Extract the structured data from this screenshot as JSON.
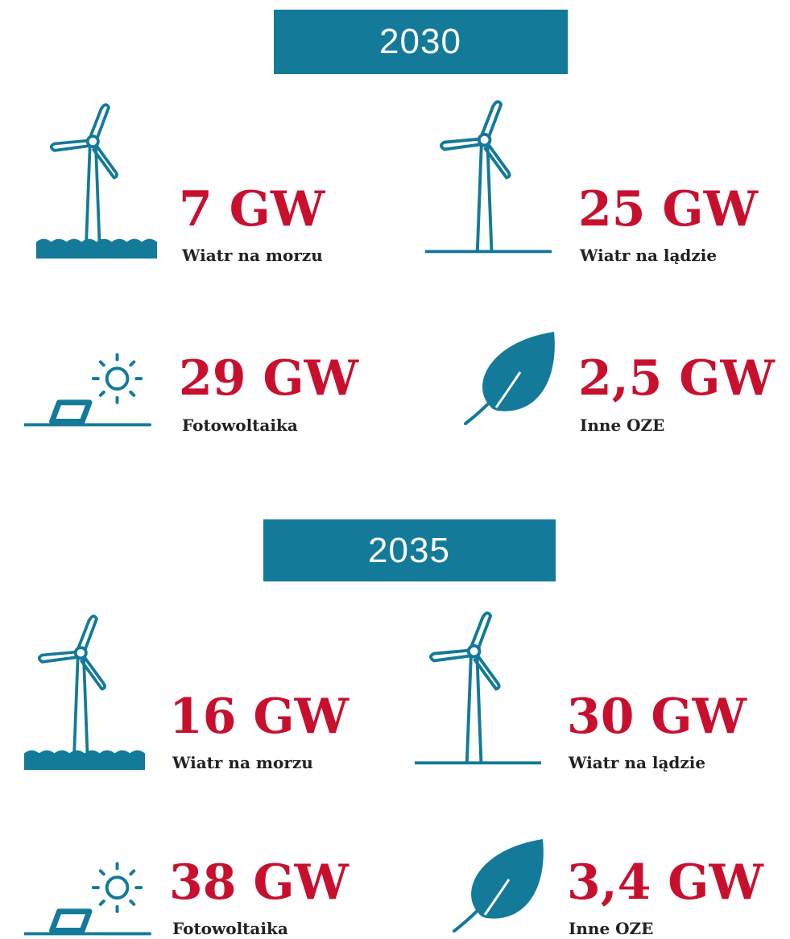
{
  "sections": [
    {
      "year": "2030",
      "items": [
        {
          "value": "7 GW",
          "label": "Wiatr na morzu"
        },
        {
          "value": "25 GW",
          "label": "Wiatr na lądzie"
        },
        {
          "value": "29 GW",
          "label": "Fotowoltaika"
        },
        {
          "value": "2,5 GW",
          "label": "Inne OZE"
        }
      ]
    },
    {
      "year": "2035",
      "items": [
        {
          "value": "16 GW",
          "label": "Wiatr na morzu"
        },
        {
          "value": "30 GW",
          "label": "Wiatr na lądzie"
        },
        {
          "value": "38 GW",
          "label": "Fotowoltaika"
        },
        {
          "value": "3,4 GW",
          "label": "Inne OZE"
        }
      ]
    }
  ]
}
